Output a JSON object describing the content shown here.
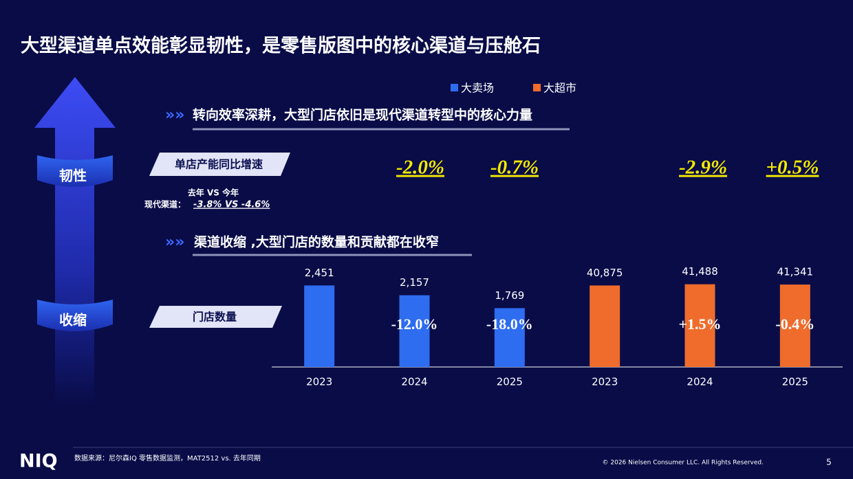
{
  "header": {
    "title": "大型渠道单点效能彰显韧性，是零售版图中的核心渠道与压舱石"
  },
  "side": {
    "top": "韧性",
    "bottom": "收缩"
  },
  "sections": [
    {
      "title": "转向效率深耕，大型门店依旧是现代渠道转型中的核心力量"
    },
    {
      "title": "渠道收缩 ,大型门店的数量和贡献都在收窄"
    }
  ],
  "store_growth": {
    "label": "单店产能同比增速",
    "note_line1": "去年 VS 今年",
    "note_prefix": "现代渠道：",
    "note_value": "-3.8% VS -4.6%",
    "items": [
      "-2.0%",
      "-0.7%",
      "-2.9%",
      "+0.5%"
    ]
  },
  "chart_data": {
    "type": "bar",
    "label": "门店数量",
    "categories": [
      "2023",
      "2024",
      "2025",
      "2023",
      "2024",
      "2025"
    ],
    "series": [
      {
        "name": "大卖场",
        "color": "#2e6cf0",
        "values": [
          2451,
          2157,
          1769,
          null,
          null,
          null
        ],
        "value_labels": [
          "2,451",
          "2,157",
          "1,769",
          null,
          null,
          null
        ]
      },
      {
        "name": "大超市",
        "color": "#ef6c2c",
        "axis": "y2",
        "values": [
          null,
          null,
          null,
          40875,
          41488,
          41341
        ],
        "value_labels": [
          null,
          null,
          null,
          "40,875",
          "41,488",
          "41,341"
        ]
      }
    ],
    "change_labels": [
      null,
      "-12.0%",
      "-18.0%",
      null,
      "+1.5%",
      "-0.4%"
    ],
    "ylim": [
      0,
      2500
    ],
    "y2lim": [
      0,
      41700
    ]
  },
  "footer": {
    "logo": "NIQ",
    "source": "数据来源：尼尔森IQ 零售数据监测，MAT2512 vs. 去年同期",
    "copyright": "© 2026 Nielsen Consumer LLC. All Rights Reserved.",
    "page": "5"
  }
}
